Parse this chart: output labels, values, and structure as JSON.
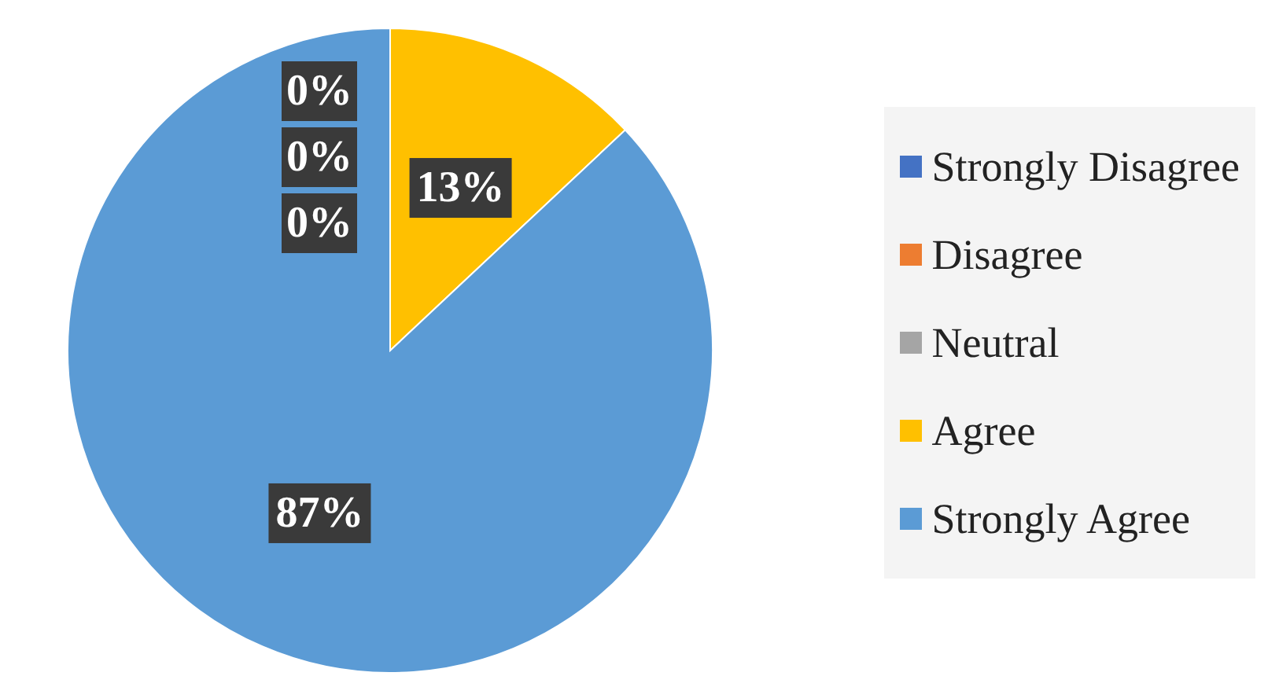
{
  "chart_data": {
    "type": "pie",
    "categories": [
      "Strongly Disagree",
      "Disagree",
      "Neutral",
      "Agree",
      "Strongly Agree"
    ],
    "values": [
      0,
      0,
      0,
      13,
      87
    ],
    "colors": [
      "#4472c4",
      "#ed7d31",
      "#a5a5a5",
      "#ffc000",
      "#5b9bd5"
    ],
    "value_labels": [
      "0%",
      "0%",
      "0%",
      "13%",
      "87%"
    ],
    "legend": "right"
  }
}
